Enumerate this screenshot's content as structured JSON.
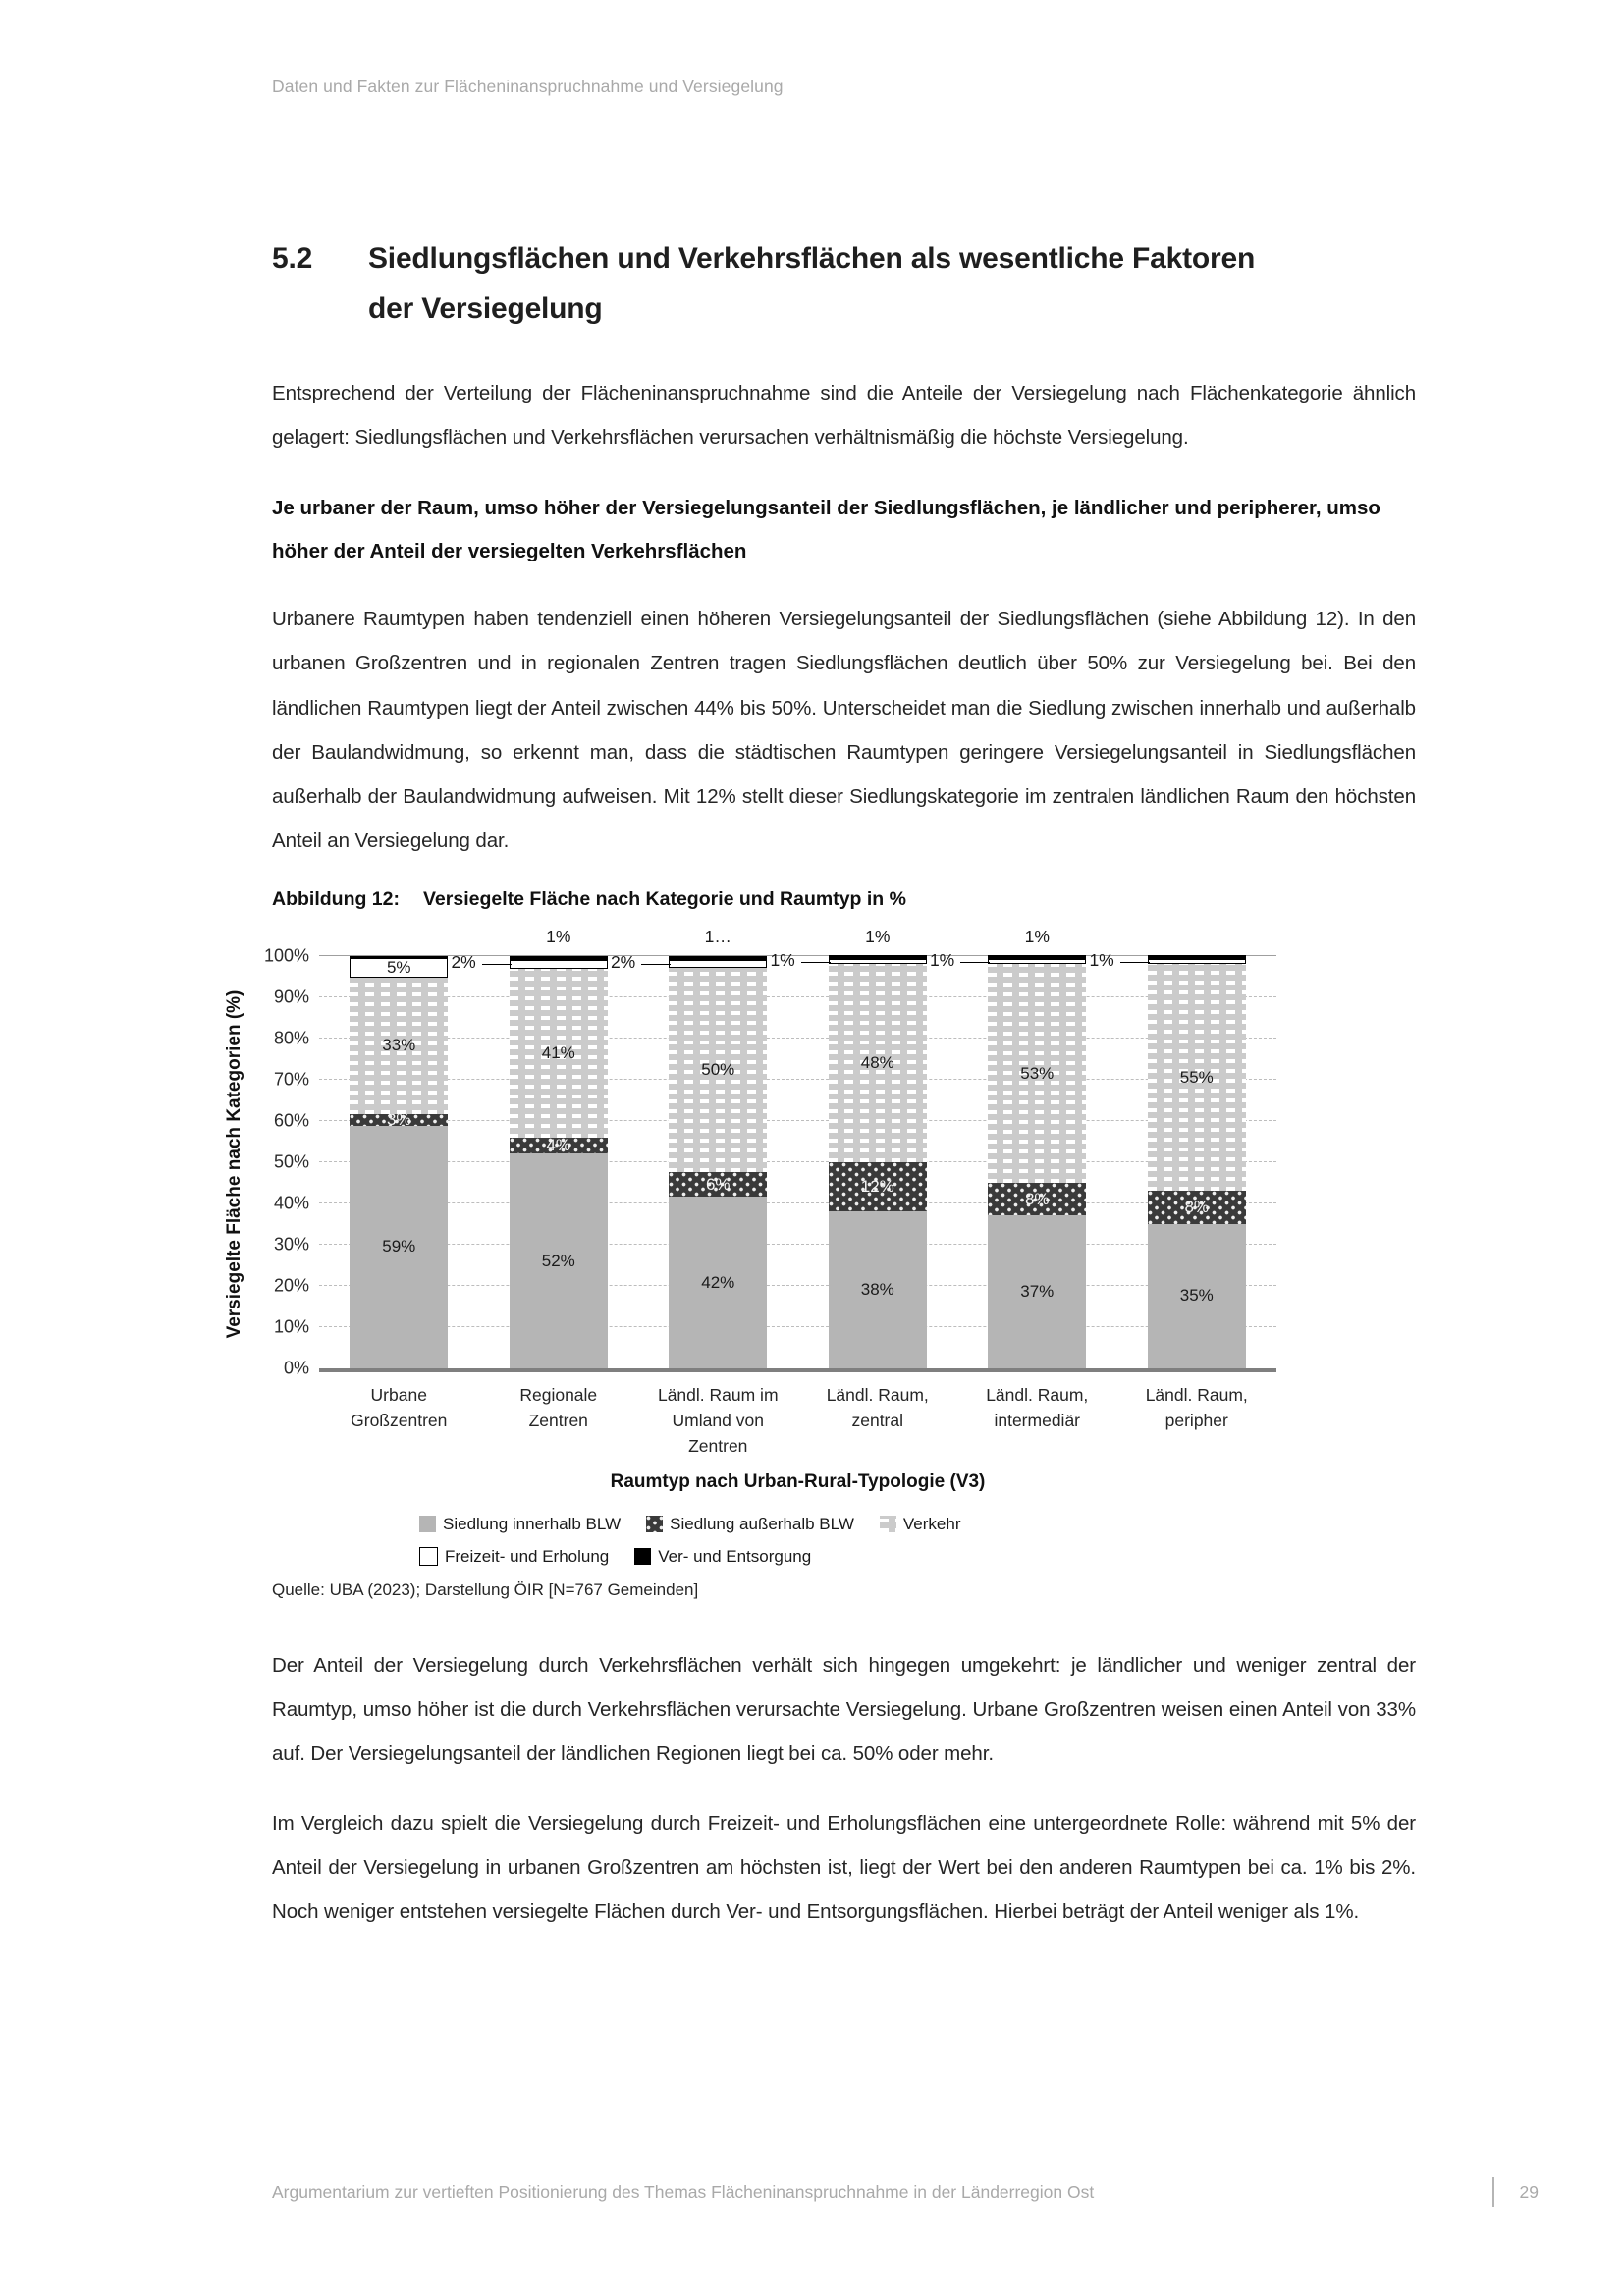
{
  "page": {
    "header": "Daten und Fakten zur Flächeninanspruchnahme und Versiegelung",
    "footer": {
      "text": "Argumentarium zur vertieften Positionierung des Themas Flächeninanspruchnahme in der Länderregion Ost",
      "page_number": "29"
    }
  },
  "section": {
    "number": "5.2",
    "title_line1": "Siedlungsflächen und Verkehrsflächen als wesentliche Faktoren",
    "title_line2": "der Versiegelung"
  },
  "paragraphs": {
    "intro": "Entsprechend der Verteilung der Flächeninanspruchnahme sind die Anteile der Versiegelung nach Flächenkategorie ähnlich gelagert: Siedlungsflächen und Verkehrsflächen verursachen verhältnismäßig die höchste Versiegelung.",
    "subheading": "Je urbaner der Raum, umso höher der Versiegelungsanteil der Siedlungsflächen, je ländlicher und peripherer, umso höher der Anteil der versiegelten Verkehrsflächen",
    "p2": "Urbanere Raumtypen haben tendenziell einen höheren Versiegelungsanteil der Siedlungsflächen (siehe Abbildung 12). In den urbanen Großzentren und in regionalen Zentren tragen Siedlungsflächen deutlich über 50% zur Versiegelung bei. Bei den ländlichen Raumtypen liegt der Anteil zwischen 44% bis 50%. Unterscheidet man die Siedlung zwischen innerhalb und außerhalb der Baulandwidmung, so erkennt man, dass die städtischen Raumtypen geringere Versiegelungsanteil in Siedlungsflächen außerhalb der Baulandwidmung aufweisen. Mit 12% stellt dieser Siedlungskategorie im zentralen ländlichen Raum den höchsten Anteil an Versiegelung dar.",
    "p3": "Der Anteil der Versiegelung durch Verkehrsflächen verhält sich hingegen umgekehrt: je ländlicher und weniger zentral der Raumtyp, umso höher ist die durch Verkehrsflächen verursachte Versiegelung. Urbane Großzentren weisen einen Anteil von 33% auf. Der Versiegelungsanteil der ländlichen Regionen liegt bei ca. 50% oder mehr.",
    "p4": "Im Vergleich dazu spielt die Versiegelung durch Freizeit- und Erholungsflächen eine untergeordnete Rolle: während mit 5% der Anteil der Versiegelung in urbanen Großzentren am höchsten ist, liegt der Wert bei den anderen Raumtypen bei ca. 1% bis 2%. Noch weniger entstehen versiegelte Flächen durch Ver- und Entsorgungsflächen. Hierbei beträgt der Anteil weniger als 1%."
  },
  "figure": {
    "caption_label": "Abbildung 12:",
    "caption_text": "Versiegelte Fläche nach Kategorie und Raumtyp in %",
    "source": "Quelle: UBA (2023); Darstellung ÖIR [N=767 Gemeinden]"
  },
  "chart_data": {
    "type": "bar",
    "stacked": true,
    "title": "Versiegelte Fläche nach Kategorie und Raumtyp in %",
    "xlabel": "Raumtyp nach Urban-Rural-Typologie (V3)",
    "ylabel": "Versiegelte Fläche nach Kategorien (%)",
    "ylim": [
      0,
      100
    ],
    "ytick_step": 10,
    "ytick_suffix": "%",
    "grid": "dashed-horizontal",
    "legend_position": "bottom",
    "categories": [
      [
        "Urbane",
        "Großzentren"
      ],
      [
        "Regionale",
        "Zentren"
      ],
      [
        "Ländl. Raum im",
        "Umland von",
        "Zentren"
      ],
      [
        "Ländl. Raum,",
        "zentral"
      ],
      [
        "Ländl. Raum,",
        "intermediär"
      ],
      [
        "Ländl. Raum,",
        "peripher"
      ]
    ],
    "series": [
      {
        "name": "Siedlung innerhalb BLW",
        "pattern": "solid-light",
        "color": "#b5b5b5",
        "values": [
          59,
          52,
          42,
          38,
          37,
          35
        ],
        "labels": [
          "59%",
          "52%",
          "42%",
          "38%",
          "37%",
          "35%"
        ],
        "label_style": "inside-dark"
      },
      {
        "name": "Siedlung außerhalb BLW",
        "pattern": "dots-dark",
        "color": "#3a3a3a",
        "values": [
          3,
          4,
          6,
          12,
          8,
          8
        ],
        "labels": [
          "3%",
          "4%",
          "6%",
          "12%",
          "8%",
          "8%"
        ],
        "label_style": "inside-light"
      },
      {
        "name": "Verkehr",
        "pattern": "dashes-light",
        "color": "#cbcbcb",
        "values": [
          33,
          41,
          50,
          48,
          53,
          55
        ],
        "labels": [
          "33%",
          "41%",
          "50%",
          "48%",
          "53%",
          "55%"
        ],
        "label_style": "inside-dark"
      },
      {
        "name": "Freizeit- und Erholung",
        "pattern": "outline-white",
        "color": "#ffffff",
        "values": [
          5,
          2,
          2,
          1,
          1,
          1
        ],
        "labels": [
          "5%",
          "2%",
          "2%",
          "1%",
          "1%",
          "1%"
        ],
        "label_style": "inside-first-then-leader"
      },
      {
        "name": "Ver- und Entsorgung",
        "pattern": "solid-black",
        "color": "#000000",
        "values": [
          0.4,
          1,
          1,
          1,
          1,
          1
        ],
        "labels": [
          "",
          "1%",
          "1…",
          "1%",
          "1%",
          ""
        ],
        "label_style": "above"
      }
    ],
    "legend_rows": [
      [
        "Siedlung innerhalb BLW",
        "Siedlung außerhalb BLW",
        "Verkehr"
      ],
      [
        "Freizeit- und Erholung",
        "Ver- und Entsorgung"
      ]
    ]
  }
}
